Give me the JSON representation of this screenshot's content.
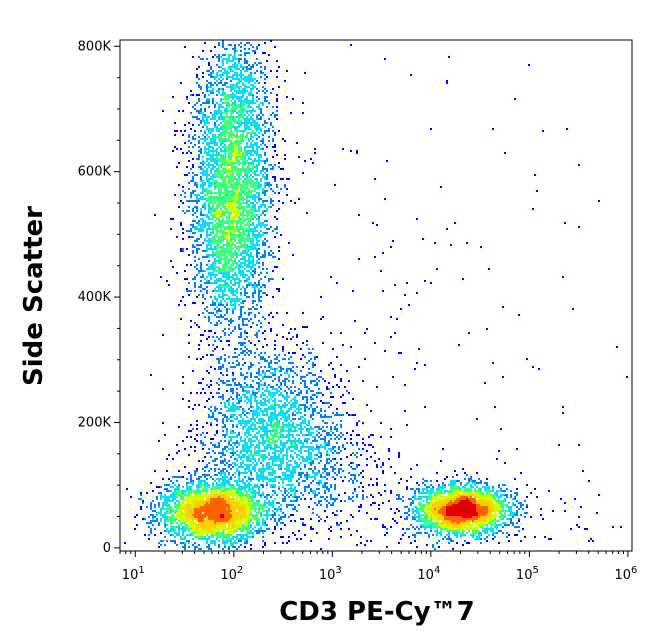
{
  "chart_data": {
    "type": "heatmap",
    "subtype": "flow-cytometry density dot plot",
    "xlabel": "CD3 PE-Cy™7",
    "ylabel": "Side Scatter",
    "x_scale": "log",
    "xlim": [
      7,
      1100000
    ],
    "ylim": [
      -5000,
      810000
    ],
    "x_ticks": [
      {
        "base": "10",
        "exp": "1",
        "value": 10
      },
      {
        "base": "10",
        "exp": "2",
        "value": 100
      },
      {
        "base": "10",
        "exp": "3",
        "value": 1000
      },
      {
        "base": "10",
        "exp": "4",
        "value": 10000
      },
      {
        "base": "10",
        "exp": "5",
        "value": 100000
      },
      {
        "base": "10",
        "exp": "6",
        "value": 1000000
      }
    ],
    "y_ticks": [
      {
        "label": "0",
        "value": 0
      },
      {
        "label": "200K",
        "value": 200000
      },
      {
        "label": "400K",
        "value": 400000
      },
      {
        "label": "600K",
        "value": 600000
      },
      {
        "label": "800K",
        "value": 800000
      }
    ],
    "colormap": [
      "#0000ff",
      "#0080ff",
      "#00e0ff",
      "#40ff80",
      "#d0ff00",
      "#ffd000",
      "#ff6000",
      "#e00000"
    ],
    "populations": [
      {
        "x_center": 140,
        "y_center": 520000,
        "density": "high"
      },
      {
        "x_center": 90,
        "y_center": 55000,
        "density": "very high"
      },
      {
        "x_center": 350,
        "y_center": 200000,
        "density": "medium"
      },
      {
        "x_center": 25000,
        "y_center": 55000,
        "density": "very high"
      }
    ],
    "grid": false,
    "legend": "none"
  }
}
